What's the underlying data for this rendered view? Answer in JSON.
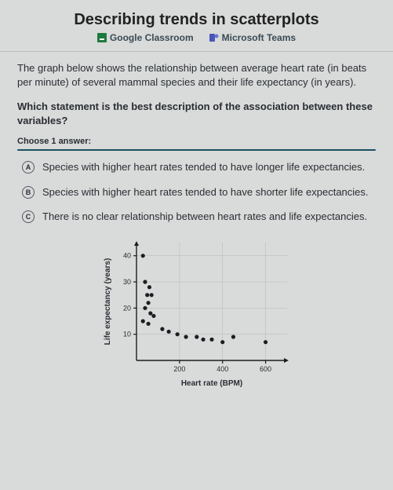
{
  "header": {
    "title": "Describing trends in scatterplots",
    "platforms": [
      {
        "label": "Google Classroom",
        "icon_color": "#1e7a3e"
      },
      {
        "label": "Microsoft Teams",
        "icon_color": "#4a55b8"
      }
    ]
  },
  "body": {
    "context": "The graph below shows the relationship between average heart rate (in beats per minute) of several mammal species and their life expectancy (in years).",
    "question": "Which statement is the best description of the association between these variables?",
    "instruction": "Choose 1 answer:",
    "answers": [
      {
        "letter": "A",
        "text": "Species with higher heart rates tended to have longer life expectancies."
      },
      {
        "letter": "B",
        "text": "Species with higher heart rates tended to have shorter life expectancies."
      },
      {
        "letter": "C",
        "text": "There is no clear relationship between heart rates and life expectancies."
      }
    ]
  },
  "chart": {
    "type": "scatter",
    "x_label": "Heart rate (BPM)",
    "y_label": "Life expectancy (years)",
    "xlim": [
      0,
      700
    ],
    "ylim": [
      0,
      45
    ],
    "x_ticks": [
      200,
      400,
      600
    ],
    "y_ticks": [
      10,
      20,
      30,
      40
    ],
    "point_color": "#1a1d22",
    "point_radius": 2.6,
    "axis_color": "#1a1d22",
    "grid_color": "#b8bcba",
    "label_color": "#2a2d34",
    "label_fontsize": 10,
    "tick_fontsize": 9,
    "points": [
      [
        30,
        40
      ],
      [
        40,
        30
      ],
      [
        60,
        28
      ],
      [
        50,
        25
      ],
      [
        70,
        25
      ],
      [
        55,
        22
      ],
      [
        40,
        20
      ],
      [
        65,
        18
      ],
      [
        80,
        17
      ],
      [
        30,
        15
      ],
      [
        55,
        14
      ],
      [
        120,
        12
      ],
      [
        150,
        11
      ],
      [
        190,
        10
      ],
      [
        230,
        9
      ],
      [
        280,
        9
      ],
      [
        310,
        8
      ],
      [
        350,
        8
      ],
      [
        400,
        7
      ],
      [
        450,
        9
      ],
      [
        600,
        7
      ]
    ]
  }
}
